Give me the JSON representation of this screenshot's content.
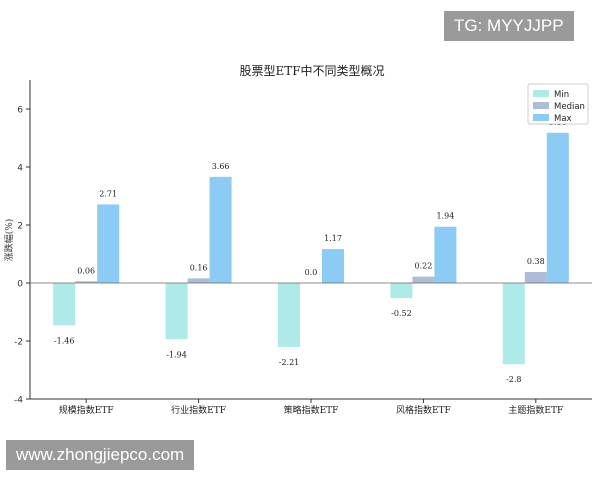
{
  "watermarks": {
    "top": "TG: MYYJJPP",
    "bottom": "www.zhongjiepco.com"
  },
  "colors": {
    "min": "#aeeae8",
    "median": "#adbdd6",
    "max": "#8ccbf3",
    "axis": "#333333",
    "zero_line": "#666666"
  },
  "chart_data": {
    "type": "bar",
    "title": "股票型ETF中不同类型概况",
    "xlabel": "",
    "ylabel": "涨跌幅(%)",
    "ylim": [
      -4,
      7
    ],
    "yticks": [
      -4,
      -2,
      0,
      2,
      4,
      6
    ],
    "grid": false,
    "legend_position": "top-right",
    "categories": [
      "规模指数ETF",
      "行业指数ETF",
      "策略指数ETF",
      "风格指数ETF",
      "主题指数ETF"
    ],
    "series": [
      {
        "name": "Min",
        "color_key": "min",
        "values": [
          -1.46,
          -1.94,
          -2.21,
          -0.52,
          -2.8
        ],
        "labels": [
          "-1.46",
          "-1.94",
          "-2.21",
          "-0.52",
          "-2.8"
        ]
      },
      {
        "name": "Median",
        "color_key": "median",
        "values": [
          0.06,
          0.16,
          0.0,
          0.22,
          0.38
        ],
        "labels": [
          "0.06",
          "0.16",
          "0.0",
          "0.22",
          "0.38"
        ]
      },
      {
        "name": "Max",
        "color_key": "max",
        "values": [
          2.71,
          3.66,
          1.17,
          1.94,
          5.18
        ],
        "labels": [
          "2.71",
          "3.66",
          "1.17",
          "1.94",
          "5.18"
        ]
      }
    ]
  }
}
